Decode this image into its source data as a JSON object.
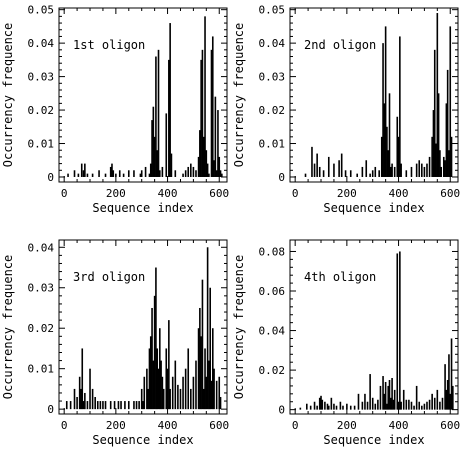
{
  "chart_data": [
    {
      "type": "bar",
      "label": "1st oligon",
      "xlabel": "Sequence index",
      "ylabel": "Occurrency frequence",
      "xlim": [
        -20,
        630
      ],
      "ylim": [
        -0.0015,
        0.0505
      ],
      "xticks": [
        0,
        200,
        400,
        600
      ],
      "xtick_labels": [
        "0",
        "200",
        "400",
        "600"
      ],
      "yticks": [
        0,
        0.01,
        0.02,
        0.03,
        0.04,
        0.05
      ],
      "ytick_labels": [
        "0",
        "0.01",
        "0.02",
        "0.03",
        "0.04",
        "0.05"
      ],
      "x": [
        15,
        40,
        55,
        68,
        75,
        80,
        90,
        110,
        135,
        160,
        180,
        185,
        190,
        200,
        215,
        230,
        250,
        270,
        295,
        300,
        315,
        330,
        335,
        340,
        345,
        350,
        355,
        360,
        365,
        370,
        380,
        395,
        405,
        410,
        415,
        430,
        460,
        470,
        480,
        490,
        500,
        510,
        520,
        525,
        530,
        535,
        540,
        545,
        550,
        555,
        560,
        570,
        575,
        580,
        585,
        590,
        595,
        600,
        605,
        610
      ],
      "values": [
        0.001,
        0.002,
        0.001,
        0.004,
        0.002,
        0.004,
        0.001,
        0.001,
        0.002,
        0.001,
        0.003,
        0.004,
        0.002,
        0.001,
        0.002,
        0.001,
        0.002,
        0.002,
        0.001,
        0.002,
        0.003,
        0.001,
        0.004,
        0.017,
        0.021,
        0.012,
        0.036,
        0.008,
        0.038,
        0.002,
        0.003,
        0.019,
        0.035,
        0.046,
        0.007,
        0.002,
        0.001,
        0.002,
        0.003,
        0.004,
        0.003,
        0.002,
        0.006,
        0.014,
        0.035,
        0.038,
        0.012,
        0.048,
        0.008,
        0.004,
        0.001,
        0.038,
        0.042,
        0.005,
        0.024,
        0.002,
        0.02,
        0.006,
        0.002,
        0.001
      ]
    },
    {
      "type": "bar",
      "label": "2nd oligon",
      "xlabel": "Sequence index",
      "ylabel": "Occurrency frequence",
      "xlim": [
        -20,
        630
      ],
      "ylim": [
        -0.0015,
        0.0505
      ],
      "xticks": [
        0,
        200,
        400,
        600
      ],
      "xtick_labels": [
        "0",
        "200",
        "400",
        "600"
      ],
      "yticks": [
        0,
        0.01,
        0.02,
        0.03,
        0.04,
        0.05
      ],
      "ytick_labels": [
        "0",
        "0.01",
        "0.02",
        "0.03",
        "0.04",
        "0.05"
      ],
      "x": [
        40,
        65,
        75,
        85,
        95,
        110,
        130,
        150,
        170,
        180,
        195,
        215,
        240,
        260,
        275,
        290,
        300,
        310,
        325,
        335,
        340,
        345,
        350,
        355,
        360,
        365,
        370,
        375,
        385,
        395,
        400,
        405,
        410,
        430,
        450,
        470,
        480,
        490,
        500,
        510,
        520,
        530,
        535,
        540,
        545,
        550,
        555,
        560,
        565,
        575,
        580,
        585,
        590,
        595,
        600,
        605
      ],
      "values": [
        0.001,
        0.009,
        0.004,
        0.007,
        0.003,
        0.002,
        0.006,
        0.004,
        0.005,
        0.007,
        0.002,
        0.002,
        0.001,
        0.003,
        0.005,
        0.001,
        0.002,
        0.003,
        0.002,
        0.012,
        0.04,
        0.022,
        0.045,
        0.015,
        0.008,
        0.025,
        0.003,
        0.004,
        0.003,
        0.018,
        0.012,
        0.042,
        0.004,
        0.002,
        0.003,
        0.004,
        0.005,
        0.004,
        0.003,
        0.004,
        0.006,
        0.012,
        0.02,
        0.038,
        0.01,
        0.049,
        0.025,
        0.008,
        0.003,
        0.006,
        0.005,
        0.022,
        0.032,
        0.008,
        0.045,
        0.012
      ]
    },
    {
      "type": "bar",
      "label": "3rd oligon",
      "xlabel": "Sequence index",
      "ylabel": "Occurrency frequence",
      "xlim": [
        -20,
        630
      ],
      "ylim": [
        -0.0012,
        0.0418
      ],
      "xticks": [
        0,
        200,
        400,
        600
      ],
      "xtick_labels": [
        "0",
        "200",
        "400",
        "600"
      ],
      "yticks": [
        0,
        0.01,
        0.02,
        0.03,
        0.04
      ],
      "ytick_labels": [
        "0",
        "0.01",
        "0.02",
        "0.03",
        "0.04"
      ],
      "x": [
        10,
        25,
        40,
        50,
        60,
        65,
        70,
        75,
        80,
        90,
        100,
        110,
        120,
        130,
        140,
        150,
        160,
        180,
        195,
        210,
        220,
        235,
        250,
        270,
        280,
        290,
        300,
        305,
        310,
        320,
        325,
        330,
        335,
        340,
        345,
        350,
        355,
        360,
        365,
        370,
        375,
        380,
        385,
        395,
        400,
        405,
        410,
        420,
        430,
        440,
        450,
        460,
        470,
        480,
        490,
        500,
        510,
        520,
        525,
        530,
        535,
        540,
        545,
        550,
        555,
        560,
        565,
        570,
        575,
        580,
        590,
        600,
        605
      ],
      "values": [
        0.002,
        0.002,
        0.005,
        0.003,
        0.008,
        0.005,
        0.015,
        0.002,
        0.004,
        0.002,
        0.01,
        0.005,
        0.003,
        0.002,
        0.002,
        0.002,
        0.002,
        0.002,
        0.002,
        0.002,
        0.002,
        0.002,
        0.002,
        0.002,
        0.002,
        0.002,
        0.005,
        0.002,
        0.008,
        0.01,
        0.005,
        0.015,
        0.018,
        0.025,
        0.012,
        0.028,
        0.035,
        0.015,
        0.01,
        0.02,
        0.012,
        0.008,
        0.005,
        0.015,
        0.01,
        0.022,
        0.005,
        0.008,
        0.012,
        0.006,
        0.005,
        0.008,
        0.01,
        0.015,
        0.005,
        0.008,
        0.012,
        0.02,
        0.025,
        0.018,
        0.032,
        0.005,
        0.015,
        0.008,
        0.04,
        0.012,
        0.03,
        0.007,
        0.02,
        0.01,
        0.007,
        0.008,
        0.003
      ]
    },
    {
      "type": "bar",
      "label": "4th oligon",
      "xlabel": "Sequence index",
      "ylabel": "Occurrency frequence",
      "xlim": [
        -20,
        630
      ],
      "ylim": [
        -0.0022,
        0.0858
      ],
      "xticks": [
        0,
        200,
        400,
        600
      ],
      "xtick_labels": [
        "0",
        "200",
        "400",
        "600"
      ],
      "yticks": [
        0,
        0.02,
        0.04,
        0.06,
        0.08
      ],
      "ytick_labels": [
        "0",
        "0.02",
        "0.04",
        "0.06",
        "0.08"
      ],
      "x": [
        20,
        45,
        60,
        75,
        85,
        95,
        100,
        105,
        115,
        125,
        130,
        140,
        150,
        160,
        175,
        185,
        200,
        215,
        230,
        245,
        260,
        270,
        280,
        290,
        300,
        310,
        320,
        330,
        340,
        345,
        350,
        355,
        360,
        365,
        370,
        375,
        380,
        385,
        395,
        400,
        405,
        410,
        420,
        430,
        440,
        450,
        460,
        470,
        480,
        490,
        500,
        510,
        520,
        530,
        540,
        550,
        560,
        570,
        580,
        585,
        590,
        595,
        600,
        605,
        610
      ],
      "values": [
        0.001,
        0.003,
        0.002,
        0.004,
        0.002,
        0.006,
        0.007,
        0.005,
        0.004,
        0.003,
        0.002,
        0.006,
        0.003,
        0.002,
        0.004,
        0.002,
        0.003,
        0.002,
        0.002,
        0.008,
        0.004,
        0.008,
        0.004,
        0.018,
        0.006,
        0.003,
        0.005,
        0.012,
        0.017,
        0.008,
        0.014,
        0.003,
        0.012,
        0.015,
        0.006,
        0.016,
        0.005,
        0.01,
        0.079,
        0.004,
        0.08,
        0.004,
        0.01,
        0.005,
        0.005,
        0.004,
        0.002,
        0.012,
        0.004,
        0.002,
        0.003,
        0.004,
        0.005,
        0.008,
        0.006,
        0.01,
        0.004,
        0.006,
        0.023,
        0.01,
        0.015,
        0.028,
        0.008,
        0.036,
        0.012
      ]
    }
  ]
}
